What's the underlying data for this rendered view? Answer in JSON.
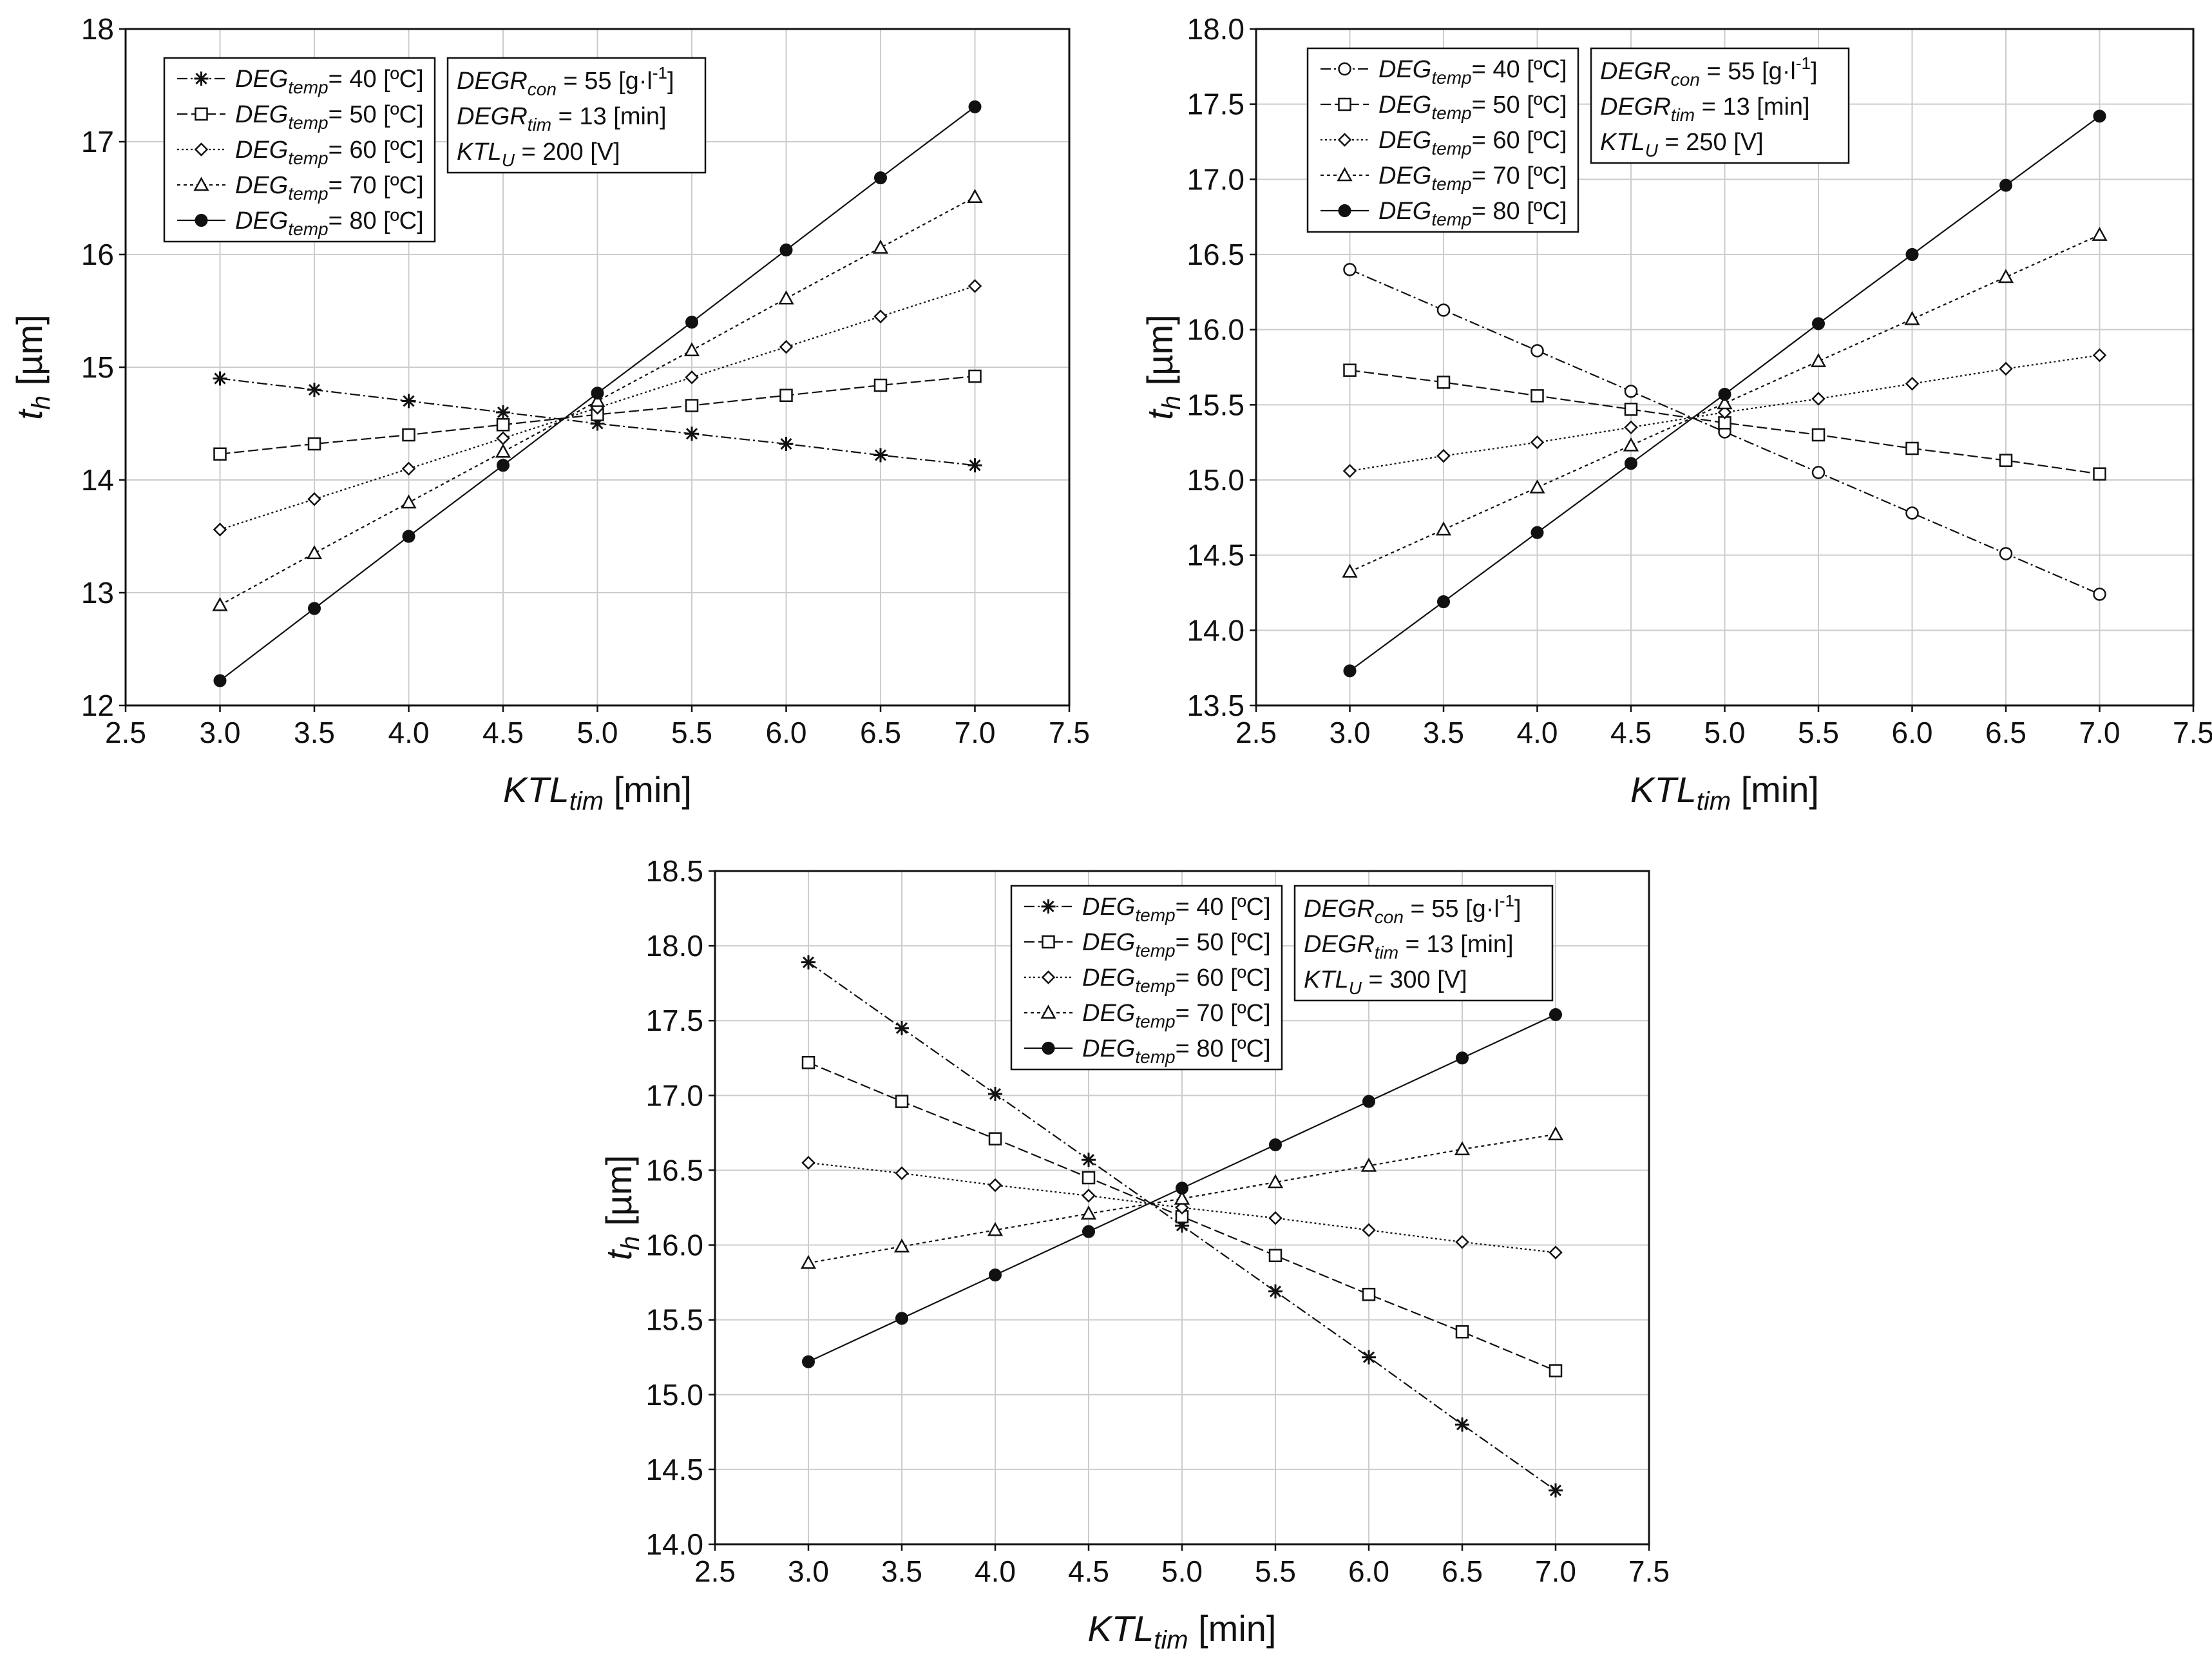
{
  "chart_data": [
    {
      "type": "line",
      "panel": "top-left",
      "title": "",
      "xlabel": {
        "main": "KTL",
        "sub": "tim",
        "unit": "[min]"
      },
      "ylabel": {
        "main": "t",
        "sub": "h",
        "unit": "[µm]"
      },
      "xlim": [
        2.5,
        7.5
      ],
      "ylim": [
        12,
        18
      ],
      "xticks": [
        "2.5",
        "3.0",
        "3.5",
        "4.0",
        "4.5",
        "5.0",
        "5.5",
        "6.0",
        "6.5",
        "7.0",
        "7.5"
      ],
      "yticks": [
        "12",
        "13",
        "14",
        "15",
        "16",
        "17",
        "18"
      ],
      "grid": true,
      "x": [
        3.0,
        3.5,
        4.0,
        4.5,
        5.0,
        5.5,
        6.0,
        6.5,
        7.0
      ],
      "series": [
        {
          "name": "DEG_temp = 40 [°C]",
          "label_main": "DEG",
          "label_sub": "temp",
          "label_rest": "= 40  [ºC]",
          "marker": "star",
          "dash": "16 5 3 5",
          "values": [
            14.9,
            14.8,
            14.7,
            14.6,
            14.5,
            14.41,
            14.32,
            14.22,
            14.13
          ]
        },
        {
          "name": "DEG_temp = 50 [°C]",
          "label_main": "DEG",
          "label_sub": "temp",
          "label_rest": "= 50  [ºC]",
          "marker": "square",
          "dash": "16 6",
          "values": [
            14.23,
            14.32,
            14.4,
            14.49,
            14.58,
            14.66,
            14.75,
            14.84,
            14.92
          ]
        },
        {
          "name": "DEG_temp = 60 [°C]",
          "label_main": "DEG",
          "label_sub": "temp",
          "label_rest": "= 60  [ºC]",
          "marker": "diamond",
          "dash": "3 4",
          "values": [
            13.56,
            13.83,
            14.1,
            14.37,
            14.64,
            14.91,
            15.18,
            15.45,
            15.72
          ]
        },
        {
          "name": "DEG_temp = 70 [°C]",
          "label_main": "DEG",
          "label_sub": "temp",
          "label_rest": "= 70  [ºC]",
          "marker": "triangle",
          "dash": "5 5",
          "values": [
            12.89,
            13.35,
            13.8,
            14.25,
            14.7,
            15.15,
            15.61,
            16.06,
            16.51
          ]
        },
        {
          "name": "DEG_temp = 80 [°C]",
          "label_main": "DEG",
          "label_sub": "temp",
          "label_rest": "= 80  [ºC]",
          "marker": "circle",
          "dash": "",
          "values": [
            12.22,
            12.86,
            13.5,
            14.13,
            14.77,
            15.4,
            16.04,
            16.68,
            17.31
          ]
        }
      ],
      "conditions": [
        {
          "main": "DEGR",
          "sub": "con",
          "rest": " = 55 [g·l",
          "sup": "-1",
          "tail": "]"
        },
        {
          "main": "DEGR",
          "sub": "tim",
          "rest": " = 13 [min]",
          "sup": "",
          "tail": ""
        },
        {
          "main": "KTL",
          "sub": "U",
          "rest": " = 200 [V]",
          "sup": "",
          "tail": ""
        }
      ]
    },
    {
      "type": "line",
      "panel": "top-right",
      "title": "",
      "xlabel": {
        "main": "KTL",
        "sub": "tim",
        "unit": "[min]"
      },
      "ylabel": {
        "main": "t",
        "sub": "h",
        "unit": "[µm]"
      },
      "xlim": [
        2.5,
        7.5
      ],
      "ylim": [
        13.5,
        18.0
      ],
      "xticks": [
        "2.5",
        "3.0",
        "3.5",
        "4.0",
        "4.5",
        "5.0",
        "5.5",
        "6.0",
        "6.5",
        "7.0",
        "7.5"
      ],
      "yticks": [
        "13.5",
        "14.0",
        "14.5",
        "15.0",
        "15.5",
        "16.0",
        "16.5",
        "17.0",
        "17.5",
        "18.0"
      ],
      "grid": true,
      "x": [
        3.0,
        3.5,
        4.0,
        4.5,
        5.0,
        5.5,
        6.0,
        6.5,
        7.0
      ],
      "series": [
        {
          "name": "DEG_temp = 40 [°C]",
          "label_main": "DEG",
          "label_sub": "temp",
          "label_rest": "= 40  [ºC]",
          "marker": "circle-open",
          "dash": "16 5 3 5",
          "values": [
            16.4,
            16.13,
            15.86,
            15.59,
            15.32,
            15.05,
            14.78,
            14.51,
            14.24
          ]
        },
        {
          "name": "DEG_temp = 50 [°C]",
          "label_main": "DEG",
          "label_sub": "temp",
          "label_rest": "= 50  [ºC]",
          "marker": "square",
          "dash": "16 6",
          "values": [
            15.73,
            15.65,
            15.56,
            15.47,
            15.38,
            15.3,
            15.21,
            15.13,
            15.04
          ]
        },
        {
          "name": "DEG_temp = 60 [°C]",
          "label_main": "DEG",
          "label_sub": "temp",
          "label_rest": "= 60  [ºC]",
          "marker": "diamond",
          "dash": "3 4",
          "values": [
            15.06,
            15.16,
            15.25,
            15.35,
            15.45,
            15.54,
            15.64,
            15.74,
            15.83
          ]
        },
        {
          "name": "DEG_temp = 70 [°C]",
          "label_main": "DEG",
          "label_sub": "temp",
          "label_rest": "= 70  [ºC]",
          "marker": "triangle",
          "dash": "5 5",
          "values": [
            14.39,
            14.67,
            14.95,
            15.23,
            15.51,
            15.79,
            16.07,
            16.35,
            16.63
          ]
        },
        {
          "name": "DEG_temp = 80 [°C]",
          "label_main": "DEG",
          "label_sub": "temp",
          "label_rest": "= 80  [ºC]",
          "marker": "circle",
          "dash": "",
          "values": [
            13.73,
            14.19,
            14.65,
            15.11,
            15.57,
            16.04,
            16.5,
            16.96,
            17.42
          ]
        }
      ],
      "conditions": [
        {
          "main": "DEGR",
          "sub": "con",
          "rest": " = 55 [g·l",
          "sup": "-1",
          "tail": "]"
        },
        {
          "main": "DEGR",
          "sub": "tim",
          "rest": " = 13 [min]",
          "sup": "",
          "tail": ""
        },
        {
          "main": "KTL",
          "sub": "U",
          "rest": " = 250 [V]",
          "sup": "",
          "tail": ""
        }
      ]
    },
    {
      "type": "line",
      "panel": "bottom-center",
      "title": "",
      "xlabel": {
        "main": "KTL",
        "sub": "tim",
        "unit": "[min]"
      },
      "ylabel": {
        "main": "t",
        "sub": "h",
        "unit": "[µm]"
      },
      "xlim": [
        2.5,
        7.5
      ],
      "ylim": [
        14.0,
        18.5
      ],
      "xticks": [
        "2.5",
        "3.0",
        "3.5",
        "4.0",
        "4.5",
        "5.0",
        "5.5",
        "6.0",
        "6.5",
        "7.0",
        "7.5"
      ],
      "yticks": [
        "14.0",
        "14.5",
        "15.0",
        "15.5",
        "16.0",
        "16.5",
        "17.0",
        "17.5",
        "18.0",
        "18.5"
      ],
      "grid": true,
      "x": [
        3.0,
        3.5,
        4.0,
        4.5,
        5.0,
        5.5,
        6.0,
        6.5,
        7.0
      ],
      "series": [
        {
          "name": "DEG_temp = 40 [°C]",
          "label_main": "DEG",
          "label_sub": "temp",
          "label_rest": "= 40  [ºC]",
          "marker": "star",
          "dash": "16 5 3 5",
          "values": [
            17.89,
            17.45,
            17.01,
            16.57,
            16.13,
            15.69,
            15.25,
            14.8,
            14.36
          ]
        },
        {
          "name": "DEG_temp = 50 [°C]",
          "label_main": "DEG",
          "label_sub": "temp",
          "label_rest": "= 50  [ºC]",
          "marker": "square",
          "dash": "16 6",
          "values": [
            17.22,
            16.96,
            16.71,
            16.45,
            16.19,
            15.93,
            15.67,
            15.42,
            15.16
          ]
        },
        {
          "name": "DEG_temp = 60 [°C]",
          "label_main": "DEG",
          "label_sub": "temp",
          "label_rest": "= 60  [ºC]",
          "marker": "diamond",
          "dash": "3 4",
          "values": [
            16.55,
            16.48,
            16.4,
            16.33,
            16.25,
            16.18,
            16.1,
            16.02,
            15.95
          ]
        },
        {
          "name": "DEG_temp = 70 [°C]",
          "label_main": "DEG",
          "label_sub": "temp",
          "label_rest": "= 70  [ºC]",
          "marker": "triangle",
          "dash": "5 5",
          "values": [
            15.88,
            15.99,
            16.1,
            16.21,
            16.31,
            16.42,
            16.53,
            16.64,
            16.74
          ]
        },
        {
          "name": "DEG_temp = 80 [°C]",
          "label_main": "DEG",
          "label_sub": "temp",
          "label_rest": "= 80  [ºC]",
          "marker": "circle",
          "dash": "",
          "values": [
            15.22,
            15.51,
            15.8,
            16.09,
            16.38,
            16.67,
            16.96,
            17.25,
            17.54
          ]
        }
      ],
      "conditions": [
        {
          "main": "DEGR",
          "sub": "con",
          "rest": " = 55 [g·l",
          "sup": "-1",
          "tail": "]"
        },
        {
          "main": "DEGR",
          "sub": "tim",
          "rest": " = 13 [min]",
          "sup": "",
          "tail": ""
        },
        {
          "main": "KTL",
          "sub": "U",
          "rest": " = 300 [V]",
          "sup": "",
          "tail": ""
        }
      ]
    }
  ]
}
